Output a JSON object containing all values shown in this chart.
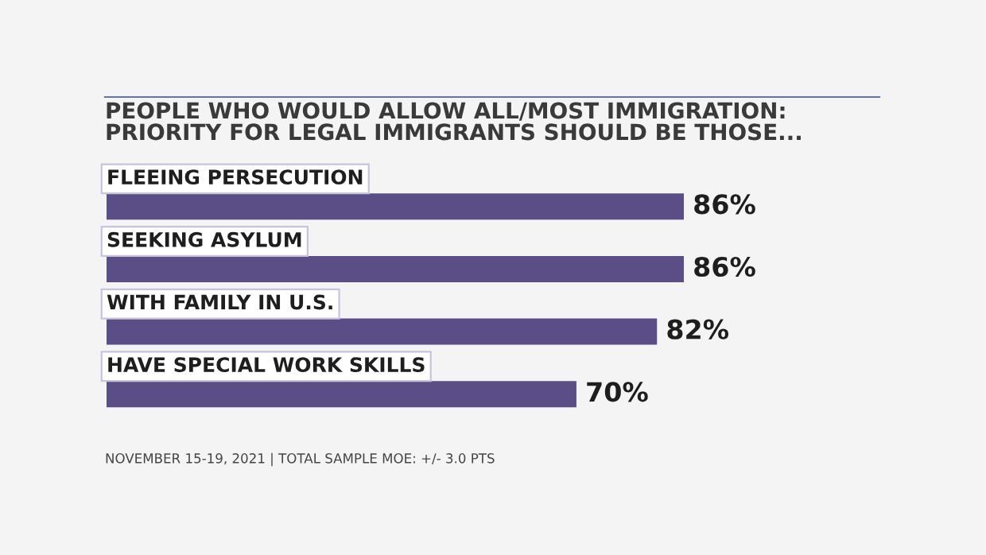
{
  "chart_data": {
    "type": "bar",
    "orientation": "horizontal",
    "title": "PEOPLE WHO WOULD ALLOW ALL/MOST IMMIGRATION:\nPRIORITY FOR LEGAL IMMIGRANTS SHOULD BE THOSE...",
    "categories": [
      "FLEEING PERSECUTION",
      "SEEKING ASYLUM",
      "WITH FAMILY IN U.S.",
      "HAVE SPECIAL WORK SKILLS"
    ],
    "values": [
      86,
      86,
      82,
      70
    ],
    "color": "#5b4e87",
    "value_labels": [
      "86%",
      "86%",
      "82%",
      "70%"
    ],
    "annotations": [
      "NOVEMBER 15-19, 2021 | TOTAL SAMPLE MOE: +/- 3.0 PTS"
    ]
  }
}
